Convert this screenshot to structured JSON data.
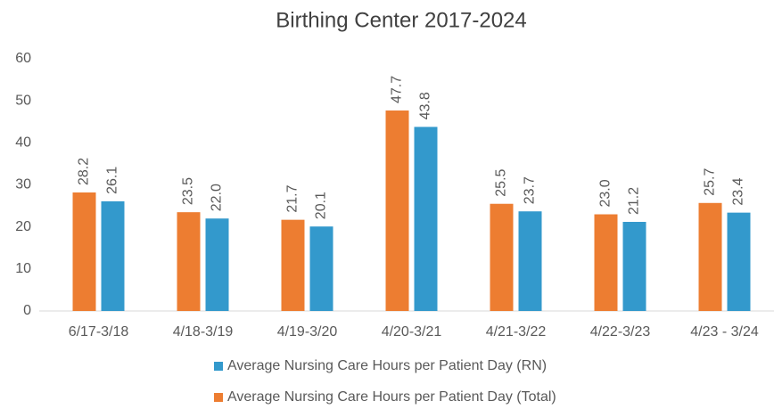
{
  "chart_data": {
    "type": "bar",
    "title": "Birthing Center 2017-2024",
    "categories": [
      "6/17-3/18",
      "4/18-3/19",
      "4/19-3/20",
      "4/20-3/21",
      "4/21-3/22",
      "4/22-3/23",
      "4/23 - 3/24"
    ],
    "series": [
      {
        "name": "Average Nursing Care Hours per Patient Day (Total)",
        "color": "#ed7d31",
        "values": [
          28.2,
          23.5,
          21.7,
          47.7,
          25.5,
          23.0,
          25.7
        ],
        "value_labels": [
          "28.2",
          "23.5",
          "21.7",
          "47.7",
          "25.5",
          "23.0",
          "25.7"
        ]
      },
      {
        "name": "Average Nursing Care Hours per Patient Day (RN)",
        "color": "#3399cc",
        "values": [
          26.1,
          22.0,
          20.1,
          43.8,
          23.7,
          21.2,
          23.4
        ],
        "value_labels": [
          "26.1",
          "22.0",
          "20.1",
          "43.8",
          "23.7",
          "21.2",
          "23.4"
        ]
      }
    ],
    "ylim": [
      0,
      60
    ],
    "yticks": [
      0,
      10,
      20,
      30,
      40,
      50,
      60
    ],
    "grid": false,
    "legend": "bottom"
  }
}
